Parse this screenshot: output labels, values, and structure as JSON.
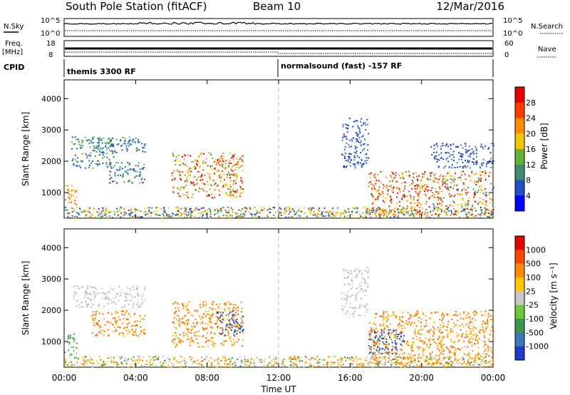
{
  "header": {
    "station": "South Pole Station (fitACF)",
    "beam": "Beam 10",
    "date": "12/Mar/2016"
  },
  "strips": {
    "nsky": {
      "label": "N.Sky",
      "ticks": [
        "10^5",
        "10^0"
      ]
    },
    "nsearch": {
      "label": "N.Search",
      "ticks": [
        "10^5",
        "10^0"
      ]
    },
    "freq": {
      "label_line1": "Freq.",
      "label_line2": "[MHz]",
      "ticks": [
        "18",
        "8"
      ]
    },
    "nave": {
      "label": "Nave",
      "ticks": [
        "60",
        "0"
      ]
    },
    "cpid": {
      "label": "CPID",
      "program_a": "themis 3300 RF",
      "program_b": "normalsound (fast) -157 RF"
    }
  },
  "time_axis": {
    "label": "Time UT",
    "ticks": [
      "00:00",
      "04:00",
      "08:00",
      "12:00",
      "16:00",
      "20:00",
      "00:00"
    ]
  },
  "chart_data": [
    {
      "type": "heatmap",
      "name": "power-panel",
      "ylabel": "Slant Range [km]",
      "yticks": [
        "1000",
        "2000",
        "3000",
        "4000"
      ],
      "ylim": [
        180,
        4600
      ],
      "xlim": [
        0,
        24
      ],
      "colorbar": {
        "label": "Power [dB]",
        "ticks": [
          "4",
          "8",
          "12",
          "16",
          "20",
          "24",
          "28"
        ],
        "colors": [
          "#0000ff",
          "#1e50c8",
          "#3c8c78",
          "#64b43c",
          "#f0c800",
          "#ff8c00",
          "#ff3c00",
          "#e60000"
        ]
      },
      "scatter_regions": [
        {
          "t0": 0.0,
          "t1": 0.7,
          "r0": 600,
          "r1": 1300,
          "value": "orange"
        },
        {
          "t0": 0.4,
          "t1": 2.8,
          "r0": 1800,
          "r1": 2800,
          "value": "blue-green"
        },
        {
          "t0": 1.5,
          "t1": 4.5,
          "r0": 2300,
          "r1": 2800,
          "value": "blue-green"
        },
        {
          "t0": 2.5,
          "t1": 4.5,
          "r0": 1300,
          "r1": 2000,
          "value": "blue-green"
        },
        {
          "t0": 6.0,
          "t1": 10.0,
          "r0": 850,
          "r1": 2300,
          "value": "red-orange"
        },
        {
          "t0": 15.5,
          "t1": 17.0,
          "r0": 1800,
          "r1": 3400,
          "value": "blue"
        },
        {
          "t0": 17.0,
          "t1": 24.0,
          "r0": 300,
          "r1": 1700,
          "value": "orange-red"
        },
        {
          "t0": 20.5,
          "t1": 24.0,
          "r0": 1800,
          "r1": 2600,
          "value": "blue"
        }
      ]
    },
    {
      "type": "heatmap",
      "name": "velocity-panel",
      "ylabel": "Slant Range [km]",
      "yticks": [
        "1000",
        "2000",
        "3000",
        "4000"
      ],
      "ylim": [
        180,
        4600
      ],
      "xlim": [
        0,
        24
      ],
      "colorbar": {
        "label": "Velocity [m s⁻¹]",
        "ticks": [
          "1000",
          "500",
          "100",
          "25",
          "-25",
          "-100",
          "-500",
          "-1000"
        ],
        "colors": [
          "#1e3cc8",
          "#3c78b4",
          "#3c9650",
          "#6ec83c",
          "#c8c8c8",
          "#ffc800",
          "#ff8c00",
          "#ff4600",
          "#e60000"
        ]
      },
      "scatter_regions": [
        {
          "t0": 0.0,
          "t1": 0.7,
          "r0": 600,
          "r1": 1300,
          "value": "green"
        },
        {
          "t0": 0.4,
          "t1": 4.5,
          "r0": 2100,
          "r1": 2800,
          "value": "grey"
        },
        {
          "t0": 1.5,
          "t1": 4.5,
          "r0": 1200,
          "r1": 2000,
          "value": "orange"
        },
        {
          "t0": 6.0,
          "t1": 10.0,
          "r0": 850,
          "r1": 2300,
          "value": "orange"
        },
        {
          "t0": 8.5,
          "t1": 10.0,
          "r0": 1200,
          "r1": 2000,
          "value": "blue"
        },
        {
          "t0": 15.5,
          "t1": 17.0,
          "r0": 1800,
          "r1": 3400,
          "value": "grey"
        },
        {
          "t0": 17.0,
          "t1": 24.0,
          "r0": 300,
          "r1": 2000,
          "value": "orange"
        },
        {
          "t0": 17.0,
          "t1": 19.0,
          "r0": 600,
          "r1": 1400,
          "value": "blue"
        }
      ]
    }
  ]
}
